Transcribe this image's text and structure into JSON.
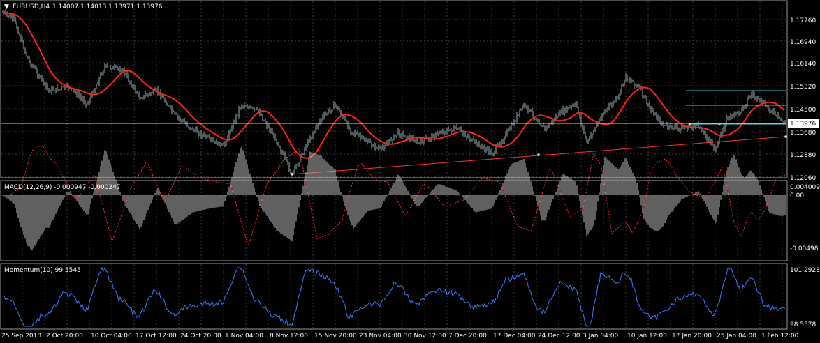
{
  "header": {
    "symbol_label": "EURUSD,H4",
    "ohlc_text": "1.14007 1.14013 1.13971 1.13976",
    "collapse_marker": "▼"
  },
  "price_axis": {
    "labels": [
      "1.17760",
      "1.16940",
      "1.16140",
      "1.15320",
      "1.14500",
      "1.13976",
      "1.13680",
      "1.12880",
      "1.12060"
    ],
    "current_price": "1.13976"
  },
  "macd_panel": {
    "label": "MACD(12,26,9) -0.000947 -0.000247",
    "axis_labels": [
      "0.004009",
      "0.00",
      "-0.00498"
    ]
  },
  "momentum_panel": {
    "label": "Momentum(10) 99.5545",
    "axis_labels": [
      "101.2928",
      "98.5578"
    ]
  },
  "time_axis": {
    "labels": [
      "25 Sep 2018",
      "2 Oct 20:00",
      "10 Oct 04:00",
      "17 Oct 12:00",
      "24 Oct 20:00",
      "1 Nov 04:00",
      "8 Nov 12:00",
      "15 Nov 20:00",
      "23 Nov 04:00",
      "30 Nov 12:00",
      "7 Dec 20:00",
      "17 Dec 04:00",
      "24 Dec 12:00",
      "3 Jan 04:00",
      "10 Jan 12:00",
      "17 Jan 20:00",
      "25 Jan 04:00",
      "1 Feb 12:00"
    ]
  },
  "colors": {
    "background": "#000000",
    "grid": "#3c3c3c",
    "candles": "#9fb8b8",
    "moving_average": "#ff2020",
    "trendline": "#ff3030",
    "channel_lines": "#40c8c8",
    "macd_hist": "#bfbfbf",
    "macd_signal": "#ff3030",
    "momentum": "#3b7bff",
    "text": "#ffffff",
    "current_price_box": "#ffffff"
  }
}
